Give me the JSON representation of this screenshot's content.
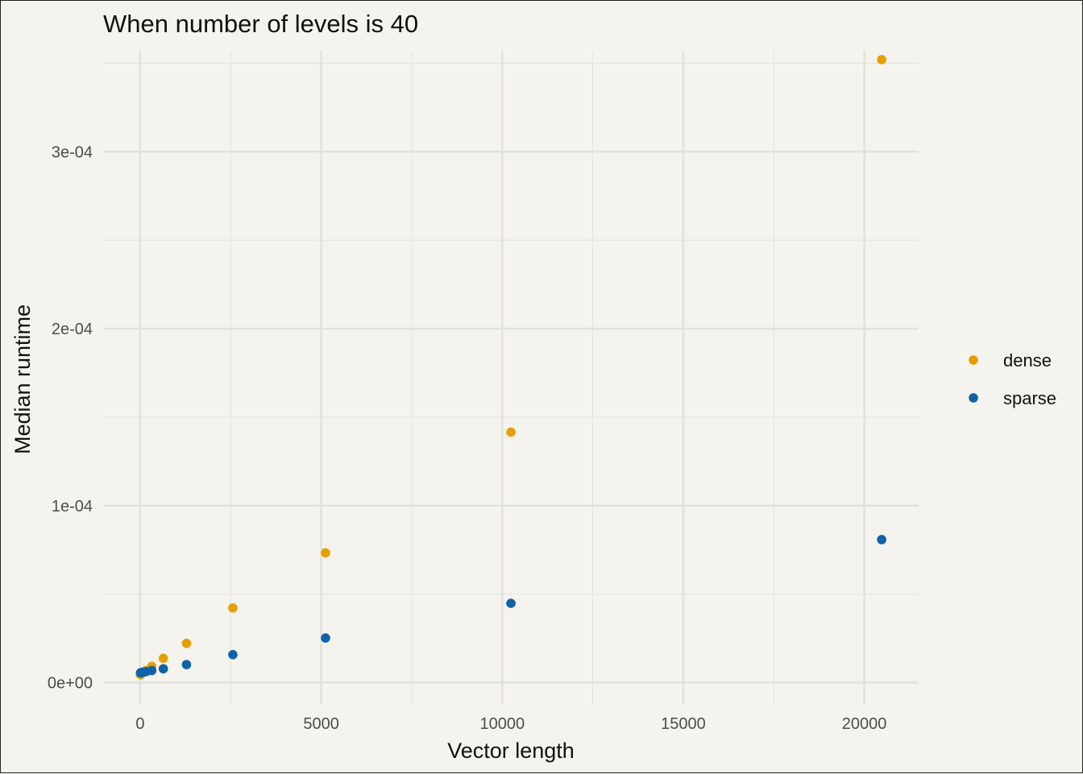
{
  "chart_data": {
    "type": "scatter",
    "title": "When number of levels is 40",
    "xlabel": "Vector length",
    "ylabel": "Median runtime",
    "xlim": [
      -1000,
      21500
    ],
    "ylim": [
      -1.25e-05,
      0.000357
    ],
    "x_ticks": [
      0,
      5000,
      10000,
      15000,
      20000
    ],
    "x_tick_labels": [
      "0",
      "5000",
      "10000",
      "15000",
      "20000"
    ],
    "x_minor": [
      2500,
      7500,
      12500,
      17500
    ],
    "y_ticks": [
      0,
      0.0001,
      0.0002,
      0.0003
    ],
    "y_tick_labels": [
      "0e+00",
      "1e-04",
      "2e-04",
      "3e-04"
    ],
    "y_minor": [
      5e-05,
      0.00015,
      0.00025,
      0.00035
    ],
    "grid": true,
    "legend_position": "right",
    "series": [
      {
        "name": "dense",
        "color": "#E69F00",
        "x": [
          10,
          20,
          40,
          80,
          160,
          320,
          640,
          1280,
          2560,
          5120,
          10240,
          20480
        ],
        "y": [
          4.5e-06,
          4.8e-06,
          5.2e-06,
          5.8e-06,
          6.8e-06,
          9.2e-06,
          1.37e-05,
          2.22e-05,
          4.22e-05,
          7.33e-05,
          0.0001415,
          0.000352
        ]
      },
      {
        "name": "sparse",
        "color": "#0F63A8",
        "x": [
          10,
          20,
          40,
          80,
          160,
          320,
          640,
          1280,
          2560,
          5120,
          10240,
          20480
        ],
        "y": [
          5.5e-06,
          5.6e-06,
          5.7e-06,
          5.9e-06,
          6.2e-06,
          6.8e-06,
          7.8e-06,
          1.02e-05,
          1.58e-05,
          2.52e-05,
          4.48e-05,
          8.08e-05
        ]
      }
    ]
  }
}
